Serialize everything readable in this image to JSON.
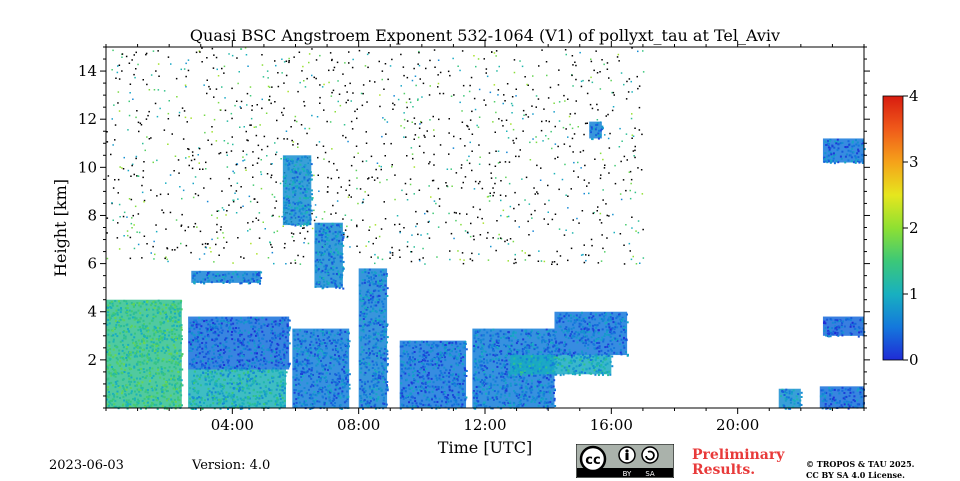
{
  "chart_data": {
    "type": "heatmap",
    "title": "Quasi BSC Angstroem Exponent 532-1064 (V1) of pollyxt_tau at Tel_Aviv",
    "xlabel": "Time [UTC]",
    "ylabel": "Height [km]",
    "xlim_hours": [
      0,
      24
    ],
    "ylim_km": [
      0,
      15
    ],
    "x_ticks": [
      {
        "hour": 4,
        "label": "04:00"
      },
      {
        "hour": 8,
        "label": "08:00"
      },
      {
        "hour": 12,
        "label": "12:00"
      },
      {
        "hour": 16,
        "label": "16:00"
      },
      {
        "hour": 20,
        "label": "20:00"
      }
    ],
    "y_ticks": [
      {
        "value": 2,
        "label": "2"
      },
      {
        "value": 4,
        "label": "4"
      },
      {
        "value": 6,
        "label": "6"
      },
      {
        "value": 8,
        "label": "8"
      },
      {
        "value": 10,
        "label": "10"
      },
      {
        "value": 12,
        "label": "12"
      },
      {
        "value": 14,
        "label": "14"
      }
    ],
    "colorbar": {
      "range": [
        0,
        4
      ],
      "ticks": [
        {
          "value": 0,
          "label": "0"
        },
        {
          "value": 1,
          "label": "1"
        },
        {
          "value": 2,
          "label": "2"
        },
        {
          "value": 3,
          "label": "3"
        },
        {
          "value": 4,
          "label": "4"
        }
      ],
      "colormap": [
        "#1f2bd6",
        "#1478dc",
        "#18b0c0",
        "#3cc878",
        "#8ee032",
        "#e6e61e",
        "#f5a21a",
        "#f05a1a",
        "#d81c10"
      ]
    },
    "regions": [
      {
        "t0": 0.0,
        "t1": 2.4,
        "h0": 0.0,
        "h1": 4.5,
        "v": 1.35
      },
      {
        "t0": 2.6,
        "t1": 5.8,
        "h0": 1.6,
        "h1": 3.8,
        "v": 0.45
      },
      {
        "t0": 2.6,
        "t1": 5.7,
        "h0": 0.0,
        "h1": 1.6,
        "v": 1.05
      },
      {
        "t0": 2.7,
        "t1": 4.9,
        "h0": 5.2,
        "h1": 5.7,
        "v": 0.6
      },
      {
        "t0": 5.9,
        "t1": 7.7,
        "h0": 0.0,
        "h1": 3.3,
        "v": 0.55
      },
      {
        "t0": 5.6,
        "t1": 6.5,
        "h0": 7.6,
        "h1": 10.5,
        "v": 0.7
      },
      {
        "t0": 6.6,
        "t1": 7.5,
        "h0": 5.0,
        "h1": 7.7,
        "v": 0.65
      },
      {
        "t0": 8.0,
        "t1": 8.9,
        "h0": 0.0,
        "h1": 5.8,
        "v": 0.6
      },
      {
        "t0": 9.3,
        "t1": 11.4,
        "h0": 0.0,
        "h1": 2.8,
        "v": 0.5
      },
      {
        "t0": 11.6,
        "t1": 14.2,
        "h0": 0.0,
        "h1": 3.3,
        "v": 0.55
      },
      {
        "t0": 12.8,
        "t1": 16.0,
        "h0": 1.4,
        "h1": 2.2,
        "v": 0.95
      },
      {
        "t0": 14.2,
        "t1": 16.5,
        "h0": 2.2,
        "h1": 4.0,
        "v": 0.5
      },
      {
        "t0": 15.3,
        "t1": 15.7,
        "h0": 11.2,
        "h1": 11.9,
        "v": 0.6
      },
      {
        "t0": 21.3,
        "t1": 22.0,
        "h0": 0.0,
        "h1": 0.8,
        "v": 0.7
      },
      {
        "t0": 22.6,
        "t1": 24.0,
        "h0": 0.0,
        "h1": 0.9,
        "v": 0.45
      },
      {
        "t0": 22.7,
        "t1": 24.0,
        "h0": 3.0,
        "h1": 3.8,
        "v": 0.4
      },
      {
        "t0": 22.7,
        "t1": 24.0,
        "h0": 10.2,
        "h1": 11.2,
        "v": 0.5
      }
    ]
  },
  "footer": {
    "date": "2023-06-03",
    "version": "Version: 4.0",
    "preliminary_line1": "Preliminary",
    "preliminary_line2": "Results.",
    "copyright_line1": "© TROPOS & TAU 2025.",
    "copyright_line2": "CC BY SA 4.0 License.",
    "cc_badge": {
      "text_cc": "cc",
      "text_by": "BY",
      "text_sa": "SA"
    }
  }
}
